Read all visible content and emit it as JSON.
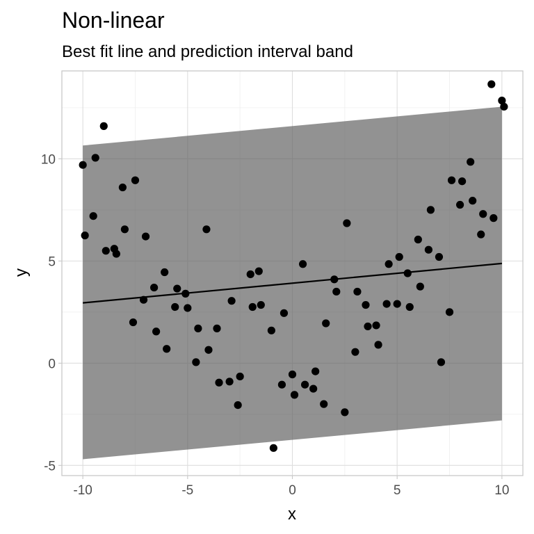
{
  "chart_data": {
    "type": "scatter",
    "title": "Non-linear",
    "subtitle": "Best fit line and prediction interval band",
    "xlabel": "x",
    "ylabel": "y",
    "xlim": [
      -11,
      11
    ],
    "ylim": [
      -5.5,
      14.3
    ],
    "x_ticks": [
      -10,
      -5,
      0,
      5,
      10
    ],
    "x_tick_labels": [
      "-10",
      "-5",
      "0",
      "5",
      "10"
    ],
    "y_ticks": [
      -5,
      0,
      5,
      10
    ],
    "y_tick_labels": [
      "-5",
      "0",
      "5",
      "10"
    ],
    "grid": true,
    "theme": "light",
    "fit_line": {
      "x": [
        -10,
        10
      ],
      "y": [
        2.95,
        4.88
      ]
    },
    "prediction_band": {
      "x": [
        -10,
        10
      ],
      "lower": [
        -4.7,
        -2.8
      ],
      "upper": [
        10.65,
        12.55
      ]
    },
    "points": [
      {
        "x": -10.0,
        "y": 9.7
      },
      {
        "x": -9.9,
        "y": 6.25
      },
      {
        "x": -9.5,
        "y": 7.2
      },
      {
        "x": -9.4,
        "y": 10.05
      },
      {
        "x": -9.0,
        "y": 11.6
      },
      {
        "x": -8.9,
        "y": 5.5
      },
      {
        "x": -8.5,
        "y": 5.6
      },
      {
        "x": -8.4,
        "y": 5.35
      },
      {
        "x": -8.1,
        "y": 8.6
      },
      {
        "x": -8.0,
        "y": 6.55
      },
      {
        "x": -7.6,
        "y": 2.0
      },
      {
        "x": -7.5,
        "y": 8.95
      },
      {
        "x": -7.1,
        "y": 3.1
      },
      {
        "x": -7.0,
        "y": 6.2
      },
      {
        "x": -6.6,
        "y": 3.7
      },
      {
        "x": -6.5,
        "y": 1.55
      },
      {
        "x": -6.1,
        "y": 4.45
      },
      {
        "x": -6.0,
        "y": 0.7
      },
      {
        "x": -5.6,
        "y": 2.75
      },
      {
        "x": -5.5,
        "y": 3.65
      },
      {
        "x": -5.1,
        "y": 3.4
      },
      {
        "x": -5.0,
        "y": 2.7
      },
      {
        "x": -4.6,
        "y": 0.05
      },
      {
        "x": -4.5,
        "y": 1.7
      },
      {
        "x": -4.1,
        "y": 6.55
      },
      {
        "x": -4.0,
        "y": 0.65
      },
      {
        "x": -3.6,
        "y": 1.7
      },
      {
        "x": -3.5,
        "y": -0.95
      },
      {
        "x": -3.0,
        "y": -0.9
      },
      {
        "x": -2.9,
        "y": 3.05
      },
      {
        "x": -2.6,
        "y": -2.05
      },
      {
        "x": -2.5,
        "y": -0.65
      },
      {
        "x": -2.0,
        "y": 4.35
      },
      {
        "x": -1.9,
        "y": 2.75
      },
      {
        "x": -1.6,
        "y": 4.5
      },
      {
        "x": -1.5,
        "y": 2.85
      },
      {
        "x": -1.0,
        "y": 1.6
      },
      {
        "x": -0.9,
        "y": -4.15
      },
      {
        "x": -0.5,
        "y": -1.05
      },
      {
        "x": -0.4,
        "y": 2.45
      },
      {
        "x": 0.0,
        "y": -0.55
      },
      {
        "x": 0.1,
        "y": -1.55
      },
      {
        "x": 0.5,
        "y": 4.85
      },
      {
        "x": 0.6,
        "y": -1.05
      },
      {
        "x": 1.0,
        "y": -1.25
      },
      {
        "x": 1.1,
        "y": -0.4
      },
      {
        "x": 1.5,
        "y": -2.0
      },
      {
        "x": 1.6,
        "y": 1.95
      },
      {
        "x": 2.0,
        "y": 4.1
      },
      {
        "x": 2.1,
        "y": 3.5
      },
      {
        "x": 2.5,
        "y": -2.4
      },
      {
        "x": 2.6,
        "y": 6.85
      },
      {
        "x": 3.0,
        "y": 0.55
      },
      {
        "x": 3.1,
        "y": 3.5
      },
      {
        "x": 3.5,
        "y": 2.85
      },
      {
        "x": 3.6,
        "y": 1.8
      },
      {
        "x": 4.0,
        "y": 1.85
      },
      {
        "x": 4.1,
        "y": 0.9
      },
      {
        "x": 4.5,
        "y": 2.9
      },
      {
        "x": 4.6,
        "y": 4.85
      },
      {
        "x": 5.0,
        "y": 2.9
      },
      {
        "x": 5.1,
        "y": 5.2
      },
      {
        "x": 5.5,
        "y": 4.4
      },
      {
        "x": 5.6,
        "y": 2.75
      },
      {
        "x": 6.0,
        "y": 6.05
      },
      {
        "x": 6.1,
        "y": 3.75
      },
      {
        "x": 6.5,
        "y": 5.55
      },
      {
        "x": 6.6,
        "y": 7.5
      },
      {
        "x": 7.0,
        "y": 5.2
      },
      {
        "x": 7.1,
        "y": 0.05
      },
      {
        "x": 7.5,
        "y": 2.5
      },
      {
        "x": 7.6,
        "y": 8.95
      },
      {
        "x": 8.0,
        "y": 7.75
      },
      {
        "x": 8.1,
        "y": 8.9
      },
      {
        "x": 8.5,
        "y": 9.85
      },
      {
        "x": 8.6,
        "y": 7.95
      },
      {
        "x": 9.0,
        "y": 6.3
      },
      {
        "x": 9.1,
        "y": 7.3
      },
      {
        "x": 9.5,
        "y": 13.65
      },
      {
        "x": 9.6,
        "y": 7.1
      },
      {
        "x": 10.0,
        "y": 12.85
      },
      {
        "x": 10.1,
        "y": 12.55
      }
    ]
  }
}
